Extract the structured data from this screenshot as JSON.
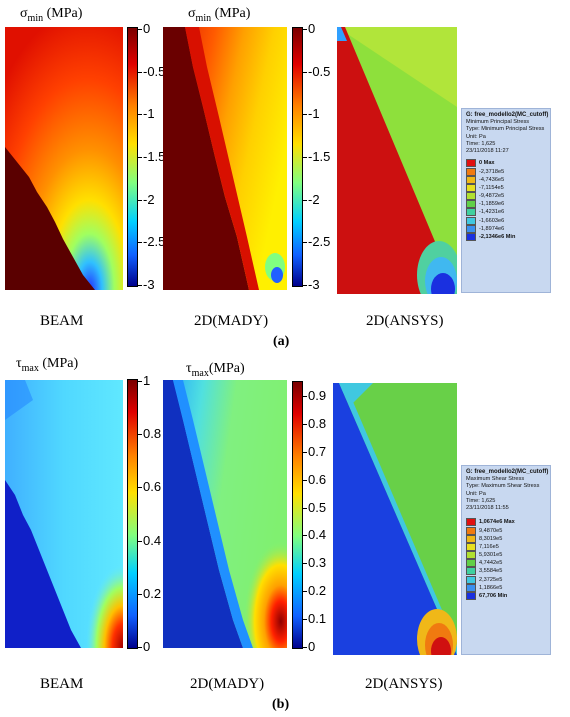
{
  "panel_a": {
    "title_beam": {
      "sym": "σ",
      "sub": "min",
      "unit": "(MPa)"
    },
    "title_mady": {
      "sym": "σ",
      "sub": "min",
      "unit": "(MPa)"
    },
    "colorbar_ticks": [
      "0",
      "-0.5",
      "-1",
      "-1.5",
      "-2",
      "-2.5",
      "-3"
    ],
    "captions": [
      "BEAM",
      "2D(MADY)",
      "2D(ANSYS)"
    ],
    "label": "(a)",
    "legend": {
      "title": "G: free_modello2(MC_cutoff)",
      "lines": [
        "Minimum Principal Stress",
        "Type: Minimum Principal Stress",
        "Unit: Pa",
        "Time: 1,625",
        "23/11/2018 11:27"
      ],
      "entries": [
        {
          "label": "0 Max",
          "color": "#e01010",
          "bold": true
        },
        {
          "label": "-2,3718e5",
          "color": "#f07a10",
          "bold": false
        },
        {
          "label": "-4,7436e5",
          "color": "#f0b818",
          "bold": false
        },
        {
          "label": "-7,1154e5",
          "color": "#e8e020",
          "bold": false
        },
        {
          "label": "-9,4872e5",
          "color": "#b0e030",
          "bold": false
        },
        {
          "label": "-1,1859e6",
          "color": "#60d048",
          "bold": false
        },
        {
          "label": "-1,4231e6",
          "color": "#40d0a0",
          "bold": false
        },
        {
          "label": "-1,6603e6",
          "color": "#40c8e0",
          "bold": false
        },
        {
          "label": "-1,8974e6",
          "color": "#3a90f0",
          "bold": false
        },
        {
          "label": "-2,1346e6 Min",
          "color": "#1a30e0",
          "bold": true
        }
      ]
    }
  },
  "panel_b": {
    "title_beam": {
      "sym": "τ",
      "sub": "max",
      "unit": "(MPa)"
    },
    "title_mady": {
      "sym": "τ",
      "sub": "max",
      "unit": "(MPa)"
    },
    "colorbar1_ticks": [
      "1",
      "0.8",
      "0.6",
      "0.4",
      "0.2",
      "0"
    ],
    "colorbar2_ticks": [
      "0.9",
      "0.8",
      "0.7",
      "0.6",
      "0.5",
      "0.4",
      "0.3",
      "0.2",
      "0.1",
      "0"
    ],
    "captions": [
      "BEAM",
      "2D(MADY)",
      "2D(ANSYS)"
    ],
    "label": "(b)",
    "legend": {
      "title": "G: free_modello2(MC_cutoff)",
      "lines": [
        "Maximum Shear Stress",
        "Type: Maximum Shear Stress",
        "Unit: Pa",
        "Time: 1,625",
        "23/11/2018 11:55"
      ],
      "entries": [
        {
          "label": "1,0674e6 Max",
          "color": "#e01010",
          "bold": true
        },
        {
          "label": "9,4870e5",
          "color": "#f07a10",
          "bold": false
        },
        {
          "label": "8,3019e5",
          "color": "#f0b818",
          "bold": false
        },
        {
          "label": "7,116e5",
          "color": "#e8e020",
          "bold": false
        },
        {
          "label": "5,9301e5",
          "color": "#b0e030",
          "bold": false
        },
        {
          "label": "4,7442e5",
          "color": "#60d048",
          "bold": false
        },
        {
          "label": "3,5584e5",
          "color": "#40d0a0",
          "bold": false
        },
        {
          "label": "2,3725e5",
          "color": "#40c8e0",
          "bold": false
        },
        {
          "label": "1,1866e5",
          "color": "#3a90f0",
          "bold": false
        },
        {
          "label": "67,706 Min",
          "color": "#1a30e0",
          "bold": true
        }
      ]
    }
  }
}
